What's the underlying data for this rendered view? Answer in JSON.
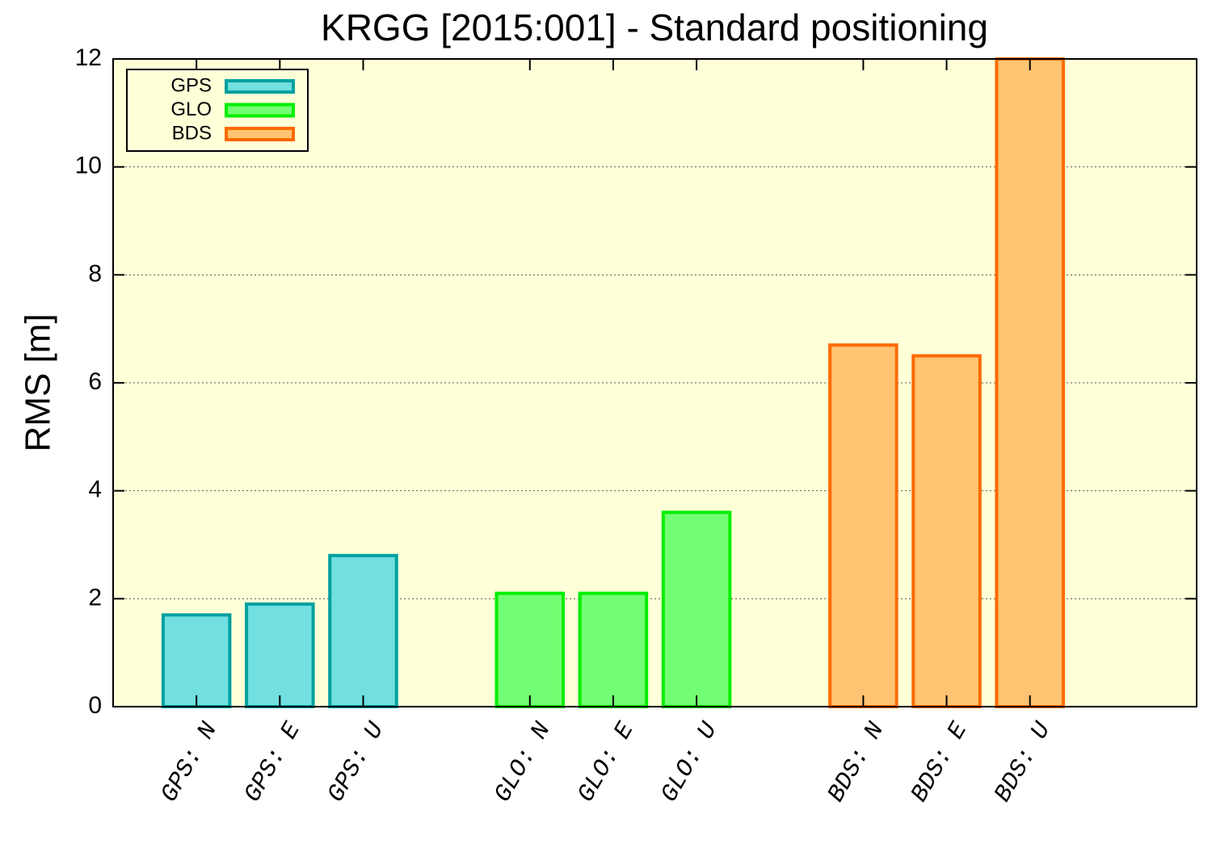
{
  "chart_data": {
    "type": "bar",
    "title": "KRGG [2015:001] - Standard positioning",
    "y_label": "RMS [m]",
    "ylim": [
      0,
      12
    ],
    "yticks": [
      0,
      2,
      4,
      6,
      8,
      10,
      12
    ],
    "grid": true,
    "legend": "top-left",
    "series": [
      {
        "name": "GPS",
        "color": "#72dfe0",
        "edge_color": "#00a0a0",
        "categories": [
          "GPS: N",
          "GPS: E",
          "GPS: U"
        ],
        "values": [
          1.7,
          1.9,
          2.8
        ]
      },
      {
        "name": "GLO",
        "color": "#73ff73",
        "edge_color": "#00ee00",
        "categories": [
          "GLO: N",
          "GLO: E",
          "GLO: U"
        ],
        "values": [
          2.1,
          2.1,
          3.6
        ]
      },
      {
        "name": "BDS",
        "color": "#ffc472",
        "edge_color": "#ff6a00",
        "categories": [
          "BDS: N",
          "BDS: E",
          "BDS: U"
        ],
        "values": [
          6.7,
          6.5,
          12
        ]
      }
    ]
  }
}
